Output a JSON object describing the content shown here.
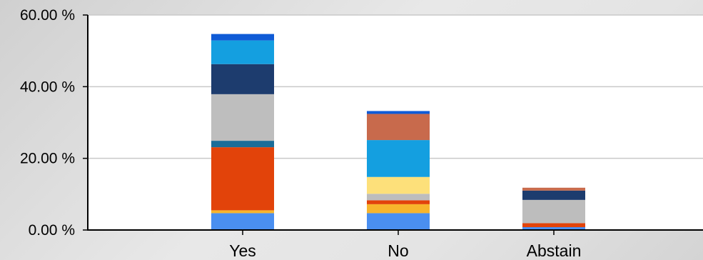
{
  "chart_data": {
    "type": "bar",
    "stacked": true,
    "grid": true,
    "categories": [
      "Yes",
      "No",
      "Abstain"
    ],
    "ylim": [
      0,
      60
    ],
    "yticks": [
      0,
      20,
      40,
      60
    ],
    "ytick_labels": [
      "0.00 %",
      "20.00 %",
      "40.00 %",
      "60.00 %"
    ],
    "series": [
      {
        "color": "#4a8ff0",
        "values": [
          4.7,
          4.7,
          0.8
        ]
      },
      {
        "color": "#f7b52c",
        "values": [
          0.8,
          2.5,
          0.0
        ]
      },
      {
        "color": "#e2430a",
        "values": [
          17.6,
          1.1,
          1.1
        ]
      },
      {
        "color": "#bdbdbd",
        "values": [
          0.0,
          1.8,
          6.5
        ]
      },
      {
        "color": "#fde07a",
        "values": [
          0.0,
          4.7,
          0.0
        ]
      },
      {
        "color": "#1a6d99",
        "values": [
          1.8,
          0.0,
          0.0
        ]
      },
      {
        "color": "#bebebe",
        "values": [
          13.0,
          0.0,
          0.0
        ]
      },
      {
        "color": "#1d3c6e",
        "values": [
          8.4,
          0.0,
          2.6
        ]
      },
      {
        "color": "#149fe0",
        "values": [
          6.6,
          10.3,
          0.0
        ]
      },
      {
        "color": "#c86a4c",
        "values": [
          0.0,
          7.3,
          0.8
        ]
      },
      {
        "color": "#0f5bd6",
        "values": [
          1.8,
          0.8,
          0.0
        ]
      }
    ]
  }
}
